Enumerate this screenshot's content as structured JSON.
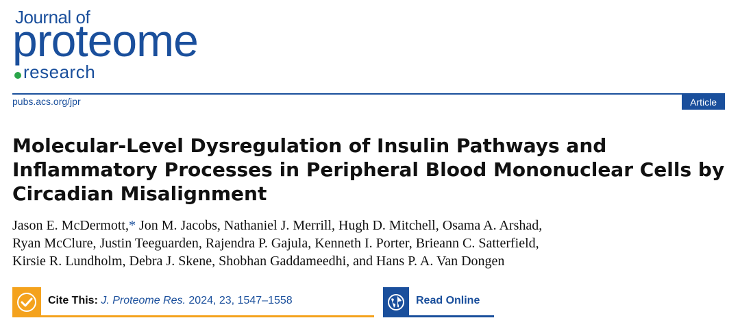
{
  "journal": {
    "logo_top": "Journal of",
    "logo_main": "proteome",
    "logo_bottom": "research",
    "url": "pubs.acs.org/jpr",
    "article_type": "Article",
    "brand_color": "#1a4f9c",
    "accent_color": "#f4a21d",
    "dot_color": "#2aa54a"
  },
  "title": "Molecular-Level Dysregulation of Insulin Pathways and Inflammatory Processes in Peripheral Blood Mononuclear Cells by Circadian Misalignment",
  "authors": {
    "line1_a": "Jason E. McDermott,",
    "corresponding_mark": "*",
    "line1_b": " Jon M. Jacobs, Nathaniel J. Merrill, Hugh D. Mitchell, Osama A. Arshad,",
    "line2": "Ryan McClure, Justin Teeguarden, Rajendra P. Gajula, Kenneth I. Porter, Brieann C. Satterfield,",
    "line3": "Kirsie R. Lundholm, Debra J. Skene, Shobhan Gaddameedhi, and Hans P. A. Van Dongen"
  },
  "cite": {
    "icon": "check-circle-icon",
    "label": "Cite This:",
    "reference": "J. Proteome Res.",
    "details": " 2024, 23, 1547–1558"
  },
  "read_online": {
    "icon": "globe-icon",
    "label": "Read Online"
  }
}
